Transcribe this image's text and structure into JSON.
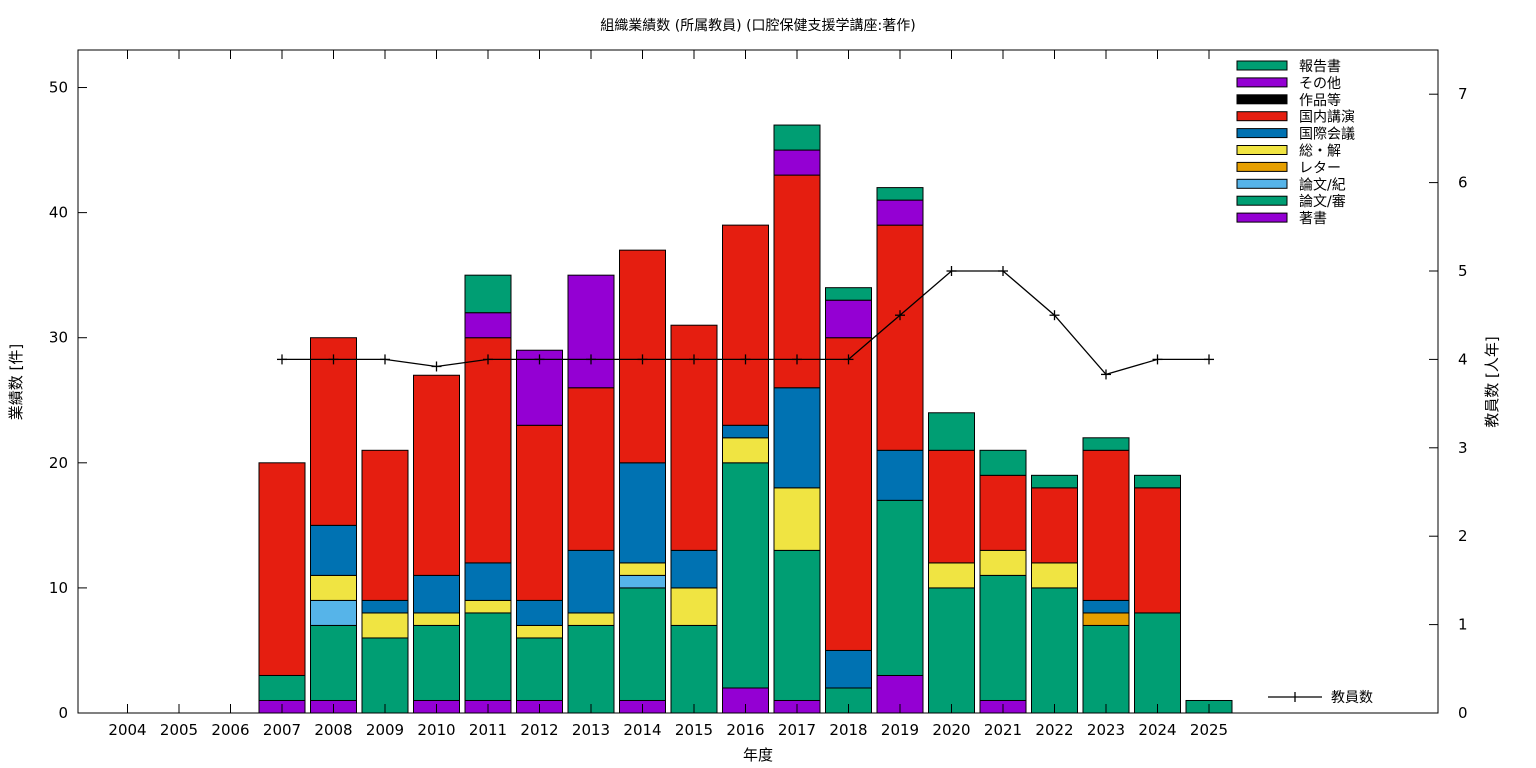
{
  "chart_data": {
    "type": "bar",
    "stacked": true,
    "title": "組織業績数 (所属教員) (口腔保健支援学講座:著作)",
    "xlabel": "年度",
    "ylabel": "業績数 [件]",
    "y2label": "教員数 [人年]",
    "ylim": [
      0,
      53
    ],
    "y2lim": [
      0,
      7.5
    ],
    "yticks": [
      "0",
      "10",
      "20",
      "30",
      "40",
      "50"
    ],
    "y2ticks": [
      "0",
      "1",
      "2",
      "3",
      "4",
      "5",
      "6",
      "7"
    ],
    "grid": false,
    "legend_position": "top-right",
    "categories": [
      "2004",
      "2005",
      "2006",
      "2007",
      "2008",
      "2009",
      "2010",
      "2011",
      "2012",
      "2013",
      "2014",
      "2015",
      "2016",
      "2017",
      "2018",
      "2019",
      "2020",
      "2021",
      "2022",
      "2023",
      "2024",
      "2025"
    ],
    "series": [
      {
        "name": "著書",
        "color": "#9400d3",
        "values": [
          0,
          0,
          0,
          1,
          1,
          0,
          1,
          1,
          1,
          0,
          1,
          0,
          2,
          1,
          0,
          3,
          0,
          1,
          0,
          0,
          0,
          0
        ]
      },
      {
        "name": "論文/審",
        "color": "#009e73",
        "values": [
          0,
          0,
          0,
          2,
          6,
          6,
          6,
          7,
          5,
          7,
          9,
          7,
          18,
          12,
          2,
          14,
          10,
          10,
          10,
          7,
          8,
          1
        ]
      },
      {
        "name": "論文/紀",
        "color": "#56b4e9",
        "values": [
          0,
          0,
          0,
          0,
          2,
          0,
          0,
          0,
          0,
          0,
          1,
          0,
          0,
          0,
          0,
          0,
          0,
          0,
          0,
          0,
          0,
          0
        ]
      },
      {
        "name": "レター",
        "color": "#e69f00",
        "values": [
          0,
          0,
          0,
          0,
          0,
          0,
          0,
          0,
          0,
          0,
          0,
          0,
          0,
          0,
          0,
          0,
          0,
          0,
          0,
          1,
          0,
          0
        ]
      },
      {
        "name": "総・解",
        "color": "#f0e442",
        "values": [
          0,
          0,
          0,
          0,
          2,
          2,
          1,
          1,
          1,
          1,
          1,
          3,
          2,
          5,
          0,
          0,
          2,
          2,
          2,
          0,
          0,
          0
        ]
      },
      {
        "name": "国際会議",
        "color": "#0072b2",
        "values": [
          0,
          0,
          0,
          0,
          4,
          1,
          3,
          3,
          2,
          5,
          8,
          3,
          1,
          8,
          3,
          4,
          0,
          0,
          0,
          1,
          0,
          0
        ]
      },
      {
        "name": "国内講演",
        "color": "#e51e10",
        "values": [
          0,
          0,
          0,
          17,
          15,
          12,
          16,
          18,
          14,
          13,
          17,
          18,
          16,
          17,
          25,
          18,
          9,
          6,
          6,
          12,
          10,
          0
        ]
      },
      {
        "name": "作品等",
        "color": "#000000",
        "values": [
          0,
          0,
          0,
          0,
          0,
          0,
          0,
          0,
          0,
          0,
          0,
          0,
          0,
          0,
          0,
          0,
          0,
          0,
          0,
          0,
          0,
          0
        ]
      },
      {
        "name": "その他",
        "color": "#9400d3",
        "values": [
          0,
          0,
          0,
          0,
          0,
          0,
          0,
          2,
          6,
          9,
          0,
          0,
          0,
          2,
          3,
          2,
          0,
          0,
          0,
          0,
          0,
          0
        ]
      },
      {
        "name": "報告書",
        "color": "#009e73",
        "values": [
          0,
          0,
          0,
          0,
          0,
          0,
          0,
          3,
          0,
          0,
          0,
          0,
          0,
          2,
          1,
          1,
          3,
          2,
          1,
          1,
          1,
          0
        ]
      }
    ],
    "line_series": {
      "name": "教員数",
      "color": "#000000",
      "axis": "y2",
      "x": [
        "2007",
        "2008",
        "2009",
        "2010",
        "2011",
        "2012",
        "2013",
        "2014",
        "2015",
        "2016",
        "2017",
        "2018",
        "2019",
        "2020",
        "2021",
        "2022",
        "2023",
        "2024",
        "2025"
      ],
      "values": [
        4,
        4,
        4,
        3.92,
        4,
        4,
        4,
        4,
        4,
        4,
        4,
        4,
        4.5,
        5,
        5,
        4.5,
        3.83,
        4,
        4
      ]
    }
  }
}
